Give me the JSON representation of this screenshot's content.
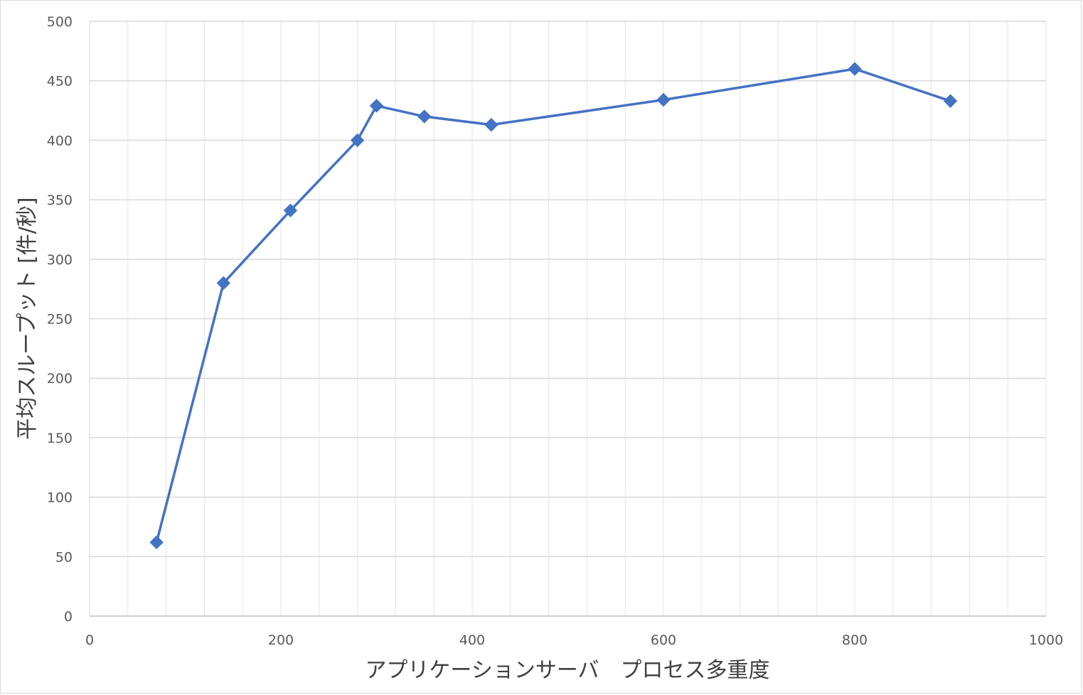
{
  "chart_data": {
    "type": "scatter",
    "title": "",
    "xlabel": "アプリケーションサーバ　プロセス多重度",
    "ylabel": "平均スループット [件/秒]",
    "xlim": [
      0,
      1000
    ],
    "ylim": [
      0,
      500
    ],
    "x_ticks": [
      0,
      200,
      400,
      600,
      800,
      1000
    ],
    "y_ticks": [
      0,
      50,
      100,
      150,
      200,
      250,
      300,
      350,
      400,
      450,
      500
    ],
    "x_minor_step": 40,
    "grid": true,
    "legend": "none",
    "series": [
      {
        "marker": "diamond",
        "line": "straight",
        "color": "#4472C4",
        "points": [
          {
            "x": 70,
            "y": 62
          },
          {
            "x": 140,
            "y": 280
          },
          {
            "x": 210,
            "y": 341
          },
          {
            "x": 280,
            "y": 400
          },
          {
            "x": 300,
            "y": 429
          },
          {
            "x": 350,
            "y": 420
          },
          {
            "x": 420,
            "y": 413
          },
          {
            "x": 600,
            "y": 434
          },
          {
            "x": 800,
            "y": 460
          },
          {
            "x": 900,
            "y": 433
          }
        ]
      }
    ]
  }
}
